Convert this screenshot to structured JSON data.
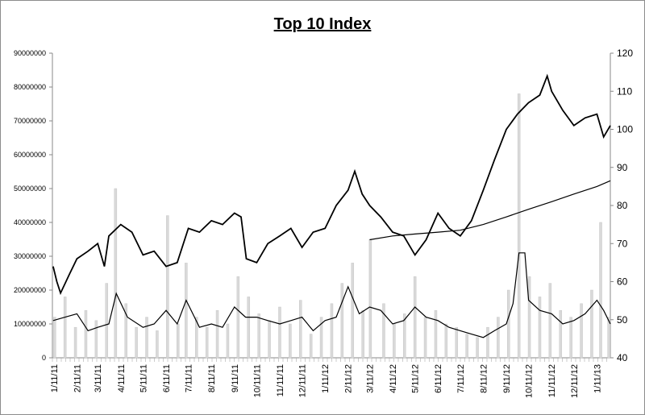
{
  "chart_data": {
    "type": "line",
    "title": "Top 10 Index",
    "xlabel": "",
    "ylabel": "",
    "y2label": "",
    "x_range": [
      "2011-01-09",
      "2013-01-29"
    ],
    "ylim_left": [
      0,
      90000000
    ],
    "ylim_right": [
      40,
      120
    ],
    "left_ticks": [
      "0",
      "10000000",
      "20000000",
      "30000000",
      "40000000",
      "50000000",
      "60000000",
      "70000000",
      "80000000",
      "90000000"
    ],
    "right_ticks": [
      "40",
      "50",
      "60",
      "70",
      "80",
      "90",
      "100",
      "110",
      "120"
    ],
    "x_ticks": [
      {
        "date": "2011-01-11",
        "label": "1/11/11"
      },
      {
        "date": "2011-02-11",
        "label": "2/11/11"
      },
      {
        "date": "2011-03-11",
        "label": "3/11/11"
      },
      {
        "date": "2011-04-11",
        "label": "4/11/11"
      },
      {
        "date": "2011-05-11",
        "label": "5/11/11"
      },
      {
        "date": "2011-06-11",
        "label": "6/11/11"
      },
      {
        "date": "2011-07-11",
        "label": "7/11/11"
      },
      {
        "date": "2011-08-11",
        "label": "8/11/11"
      },
      {
        "date": "2011-09-11",
        "label": "9/11/11"
      },
      {
        "date": "2011-10-11",
        "label": "10/11/11"
      },
      {
        "date": "2011-11-11",
        "label": "11/11/11"
      },
      {
        "date": "2011-12-11",
        "label": "12/11/11"
      },
      {
        "date": "2012-01-11",
        "label": "1/11/12"
      },
      {
        "date": "2012-02-11",
        "label": "2/11/12"
      },
      {
        "date": "2012-03-11",
        "label": "3/11/12"
      },
      {
        "date": "2012-04-11",
        "label": "4/11/12"
      },
      {
        "date": "2012-05-11",
        "label": "5/11/12"
      },
      {
        "date": "2012-06-11",
        "label": "6/11/12"
      },
      {
        "date": "2012-07-11",
        "label": "7/11/12"
      },
      {
        "date": "2012-08-11",
        "label": "8/11/12"
      },
      {
        "date": "2012-09-11",
        "label": "9/11/12"
      },
      {
        "date": "2012-10-11",
        "label": "10/11/12"
      },
      {
        "date": "2012-11-11",
        "label": "11/11/12"
      },
      {
        "date": "2012-12-11",
        "label": "12/11/12"
      },
      {
        "date": "2013-01-11",
        "label": "1/11/13"
      }
    ],
    "grid": false,
    "legend": "none",
    "colors": {
      "price": "#000000",
      "moving_average": "#000000",
      "volume_average": "#000000",
      "volume_bars": "#d9d9d9"
    },
    "series": [
      {
        "id": "volume_bars",
        "type": "bar",
        "axis": "left",
        "points": [
          [
            "2011-01-12",
            12000000
          ],
          [
            "2011-01-26",
            18000000
          ],
          [
            "2011-02-09",
            9000000
          ],
          [
            "2011-02-23",
            14000000
          ],
          [
            "2011-03-09",
            11000000
          ],
          [
            "2011-03-23",
            22000000
          ],
          [
            "2011-04-04",
            50000000
          ],
          [
            "2011-04-18",
            16000000
          ],
          [
            "2011-05-02",
            9000000
          ],
          [
            "2011-05-16",
            12000000
          ],
          [
            "2011-05-30",
            8000000
          ],
          [
            "2011-06-13",
            42000000
          ],
          [
            "2011-06-27",
            10000000
          ],
          [
            "2011-07-08",
            28000000
          ],
          [
            "2011-07-22",
            12000000
          ],
          [
            "2011-08-05",
            9000000
          ],
          [
            "2011-08-19",
            14000000
          ],
          [
            "2011-09-02",
            10000000
          ],
          [
            "2011-09-16",
            24000000
          ],
          [
            "2011-09-30",
            18000000
          ],
          [
            "2011-10-14",
            13000000
          ],
          [
            "2011-10-28",
            11000000
          ],
          [
            "2011-11-11",
            15000000
          ],
          [
            "2011-11-25",
            10000000
          ],
          [
            "2011-12-09",
            17000000
          ],
          [
            "2011-12-23",
            7000000
          ],
          [
            "2012-01-06",
            12000000
          ],
          [
            "2012-01-20",
            16000000
          ],
          [
            "2012-02-03",
            22000000
          ],
          [
            "2012-02-17",
            28000000
          ],
          [
            "2012-03-02",
            14000000
          ],
          [
            "2012-03-12",
            35000000
          ],
          [
            "2012-03-30",
            16000000
          ],
          [
            "2012-04-13",
            10000000
          ],
          [
            "2012-04-27",
            13000000
          ],
          [
            "2012-05-11",
            24000000
          ],
          [
            "2012-05-25",
            12000000
          ],
          [
            "2012-06-08",
            14000000
          ],
          [
            "2012-06-22",
            10000000
          ],
          [
            "2012-07-06",
            9000000
          ],
          [
            "2012-07-20",
            7000000
          ],
          [
            "2012-08-03",
            6000000
          ],
          [
            "2012-08-17",
            9000000
          ],
          [
            "2012-08-31",
            12000000
          ],
          [
            "2012-09-14",
            20000000
          ],
          [
            "2012-09-28",
            78000000
          ],
          [
            "2012-10-12",
            24000000
          ],
          [
            "2012-10-26",
            18000000
          ],
          [
            "2012-11-09",
            22000000
          ],
          [
            "2012-11-23",
            14000000
          ],
          [
            "2012-12-07",
            12000000
          ],
          [
            "2012-12-21",
            16000000
          ],
          [
            "2013-01-04",
            20000000
          ],
          [
            "2013-01-16",
            40000000
          ],
          [
            "2013-01-27",
            12000000
          ]
        ]
      },
      {
        "id": "volume_average",
        "type": "line",
        "axis": "left",
        "points": [
          [
            "2011-01-10",
            11000000
          ],
          [
            "2011-01-26",
            12000000
          ],
          [
            "2011-02-11",
            13000000
          ],
          [
            "2011-02-26",
            8000000
          ],
          [
            "2011-03-11",
            9000000
          ],
          [
            "2011-03-26",
            10000000
          ],
          [
            "2011-04-05",
            19000000
          ],
          [
            "2011-04-20",
            12000000
          ],
          [
            "2011-05-11",
            9000000
          ],
          [
            "2011-05-26",
            10000000
          ],
          [
            "2011-06-11",
            14000000
          ],
          [
            "2011-06-26",
            10000000
          ],
          [
            "2011-07-08",
            17000000
          ],
          [
            "2011-07-26",
            9000000
          ],
          [
            "2011-08-11",
            10000000
          ],
          [
            "2011-08-26",
            9000000
          ],
          [
            "2011-09-11",
            15000000
          ],
          [
            "2011-09-26",
            12000000
          ],
          [
            "2011-10-11",
            12000000
          ],
          [
            "2011-10-26",
            11000000
          ],
          [
            "2011-11-11",
            10000000
          ],
          [
            "2011-11-26",
            11000000
          ],
          [
            "2011-12-11",
            12000000
          ],
          [
            "2011-12-26",
            8000000
          ],
          [
            "2012-01-11",
            11000000
          ],
          [
            "2012-01-26",
            12000000
          ],
          [
            "2012-02-11",
            21000000
          ],
          [
            "2012-02-26",
            13000000
          ],
          [
            "2012-03-11",
            15000000
          ],
          [
            "2012-03-26",
            14000000
          ],
          [
            "2012-04-11",
            10000000
          ],
          [
            "2012-04-26",
            11000000
          ],
          [
            "2012-05-11",
            15000000
          ],
          [
            "2012-05-26",
            12000000
          ],
          [
            "2012-06-11",
            11000000
          ],
          [
            "2012-06-26",
            9000000
          ],
          [
            "2012-07-11",
            8000000
          ],
          [
            "2012-07-26",
            7000000
          ],
          [
            "2012-08-11",
            6000000
          ],
          [
            "2012-08-26",
            8000000
          ],
          [
            "2012-09-11",
            10000000
          ],
          [
            "2012-09-20",
            16000000
          ],
          [
            "2012-09-28",
            31000000
          ],
          [
            "2012-10-06",
            31000000
          ],
          [
            "2012-10-11",
            17000000
          ],
          [
            "2012-10-26",
            14000000
          ],
          [
            "2012-11-11",
            13000000
          ],
          [
            "2012-11-26",
            10000000
          ],
          [
            "2012-12-11",
            11000000
          ],
          [
            "2012-12-26",
            13000000
          ],
          [
            "2013-01-11",
            17000000
          ],
          [
            "2013-01-20",
            14000000
          ],
          [
            "2013-01-29",
            10000000
          ]
        ]
      },
      {
        "id": "price",
        "type": "line",
        "axis": "right",
        "points": [
          [
            "2011-01-10",
            64
          ],
          [
            "2011-01-15",
            60
          ],
          [
            "2011-01-20",
            57
          ],
          [
            "2011-02-01",
            62
          ],
          [
            "2011-02-11",
            66
          ],
          [
            "2011-02-26",
            68
          ],
          [
            "2011-03-11",
            70
          ],
          [
            "2011-03-20",
            64
          ],
          [
            "2011-03-26",
            72
          ],
          [
            "2011-04-11",
            75
          ],
          [
            "2011-04-26",
            73
          ],
          [
            "2011-05-11",
            67
          ],
          [
            "2011-05-26",
            68
          ],
          [
            "2011-06-11",
            64
          ],
          [
            "2011-06-26",
            65
          ],
          [
            "2011-07-11",
            74
          ],
          [
            "2011-07-26",
            73
          ],
          [
            "2011-08-11",
            76
          ],
          [
            "2011-08-26",
            75
          ],
          [
            "2011-09-11",
            78
          ],
          [
            "2011-09-20",
            77
          ],
          [
            "2011-09-27",
            66
          ],
          [
            "2011-10-11",
            65
          ],
          [
            "2011-10-26",
            70
          ],
          [
            "2011-11-11",
            72
          ],
          [
            "2011-11-26",
            74
          ],
          [
            "2011-12-11",
            69
          ],
          [
            "2011-12-26",
            73
          ],
          [
            "2012-01-11",
            74
          ],
          [
            "2012-01-26",
            80
          ],
          [
            "2012-02-11",
            84
          ],
          [
            "2012-02-20",
            89
          ],
          [
            "2012-03-01",
            83
          ],
          [
            "2012-03-11",
            80
          ],
          [
            "2012-03-26",
            77
          ],
          [
            "2012-04-11",
            73
          ],
          [
            "2012-04-26",
            72
          ],
          [
            "2012-05-11",
            67
          ],
          [
            "2012-05-26",
            71
          ],
          [
            "2012-06-11",
            78
          ],
          [
            "2012-06-26",
            74
          ],
          [
            "2012-07-11",
            72
          ],
          [
            "2012-07-26",
            76
          ],
          [
            "2012-08-11",
            84
          ],
          [
            "2012-08-26",
            92
          ],
          [
            "2012-09-11",
            100
          ],
          [
            "2012-09-26",
            104
          ],
          [
            "2012-10-11",
            107
          ],
          [
            "2012-10-26",
            109
          ],
          [
            "2012-11-05",
            114
          ],
          [
            "2012-11-11",
            110
          ],
          [
            "2012-11-26",
            105
          ],
          [
            "2012-12-11",
            101
          ],
          [
            "2012-12-26",
            103
          ],
          [
            "2013-01-11",
            104
          ],
          [
            "2013-01-20",
            98
          ],
          [
            "2013-01-29",
            101
          ]
        ]
      },
      {
        "id": "moving_average",
        "type": "line",
        "axis": "right",
        "points": [
          [
            "2012-03-11",
            71
          ],
          [
            "2012-04-11",
            72
          ],
          [
            "2012-05-11",
            72.5
          ],
          [
            "2012-06-11",
            73
          ],
          [
            "2012-07-11",
            73.5
          ],
          [
            "2012-08-11",
            75
          ],
          [
            "2012-09-11",
            77
          ],
          [
            "2012-10-11",
            79
          ],
          [
            "2012-11-11",
            81
          ],
          [
            "2012-12-11",
            83
          ],
          [
            "2013-01-11",
            85
          ],
          [
            "2013-01-29",
            86.5
          ]
        ]
      }
    ]
  }
}
